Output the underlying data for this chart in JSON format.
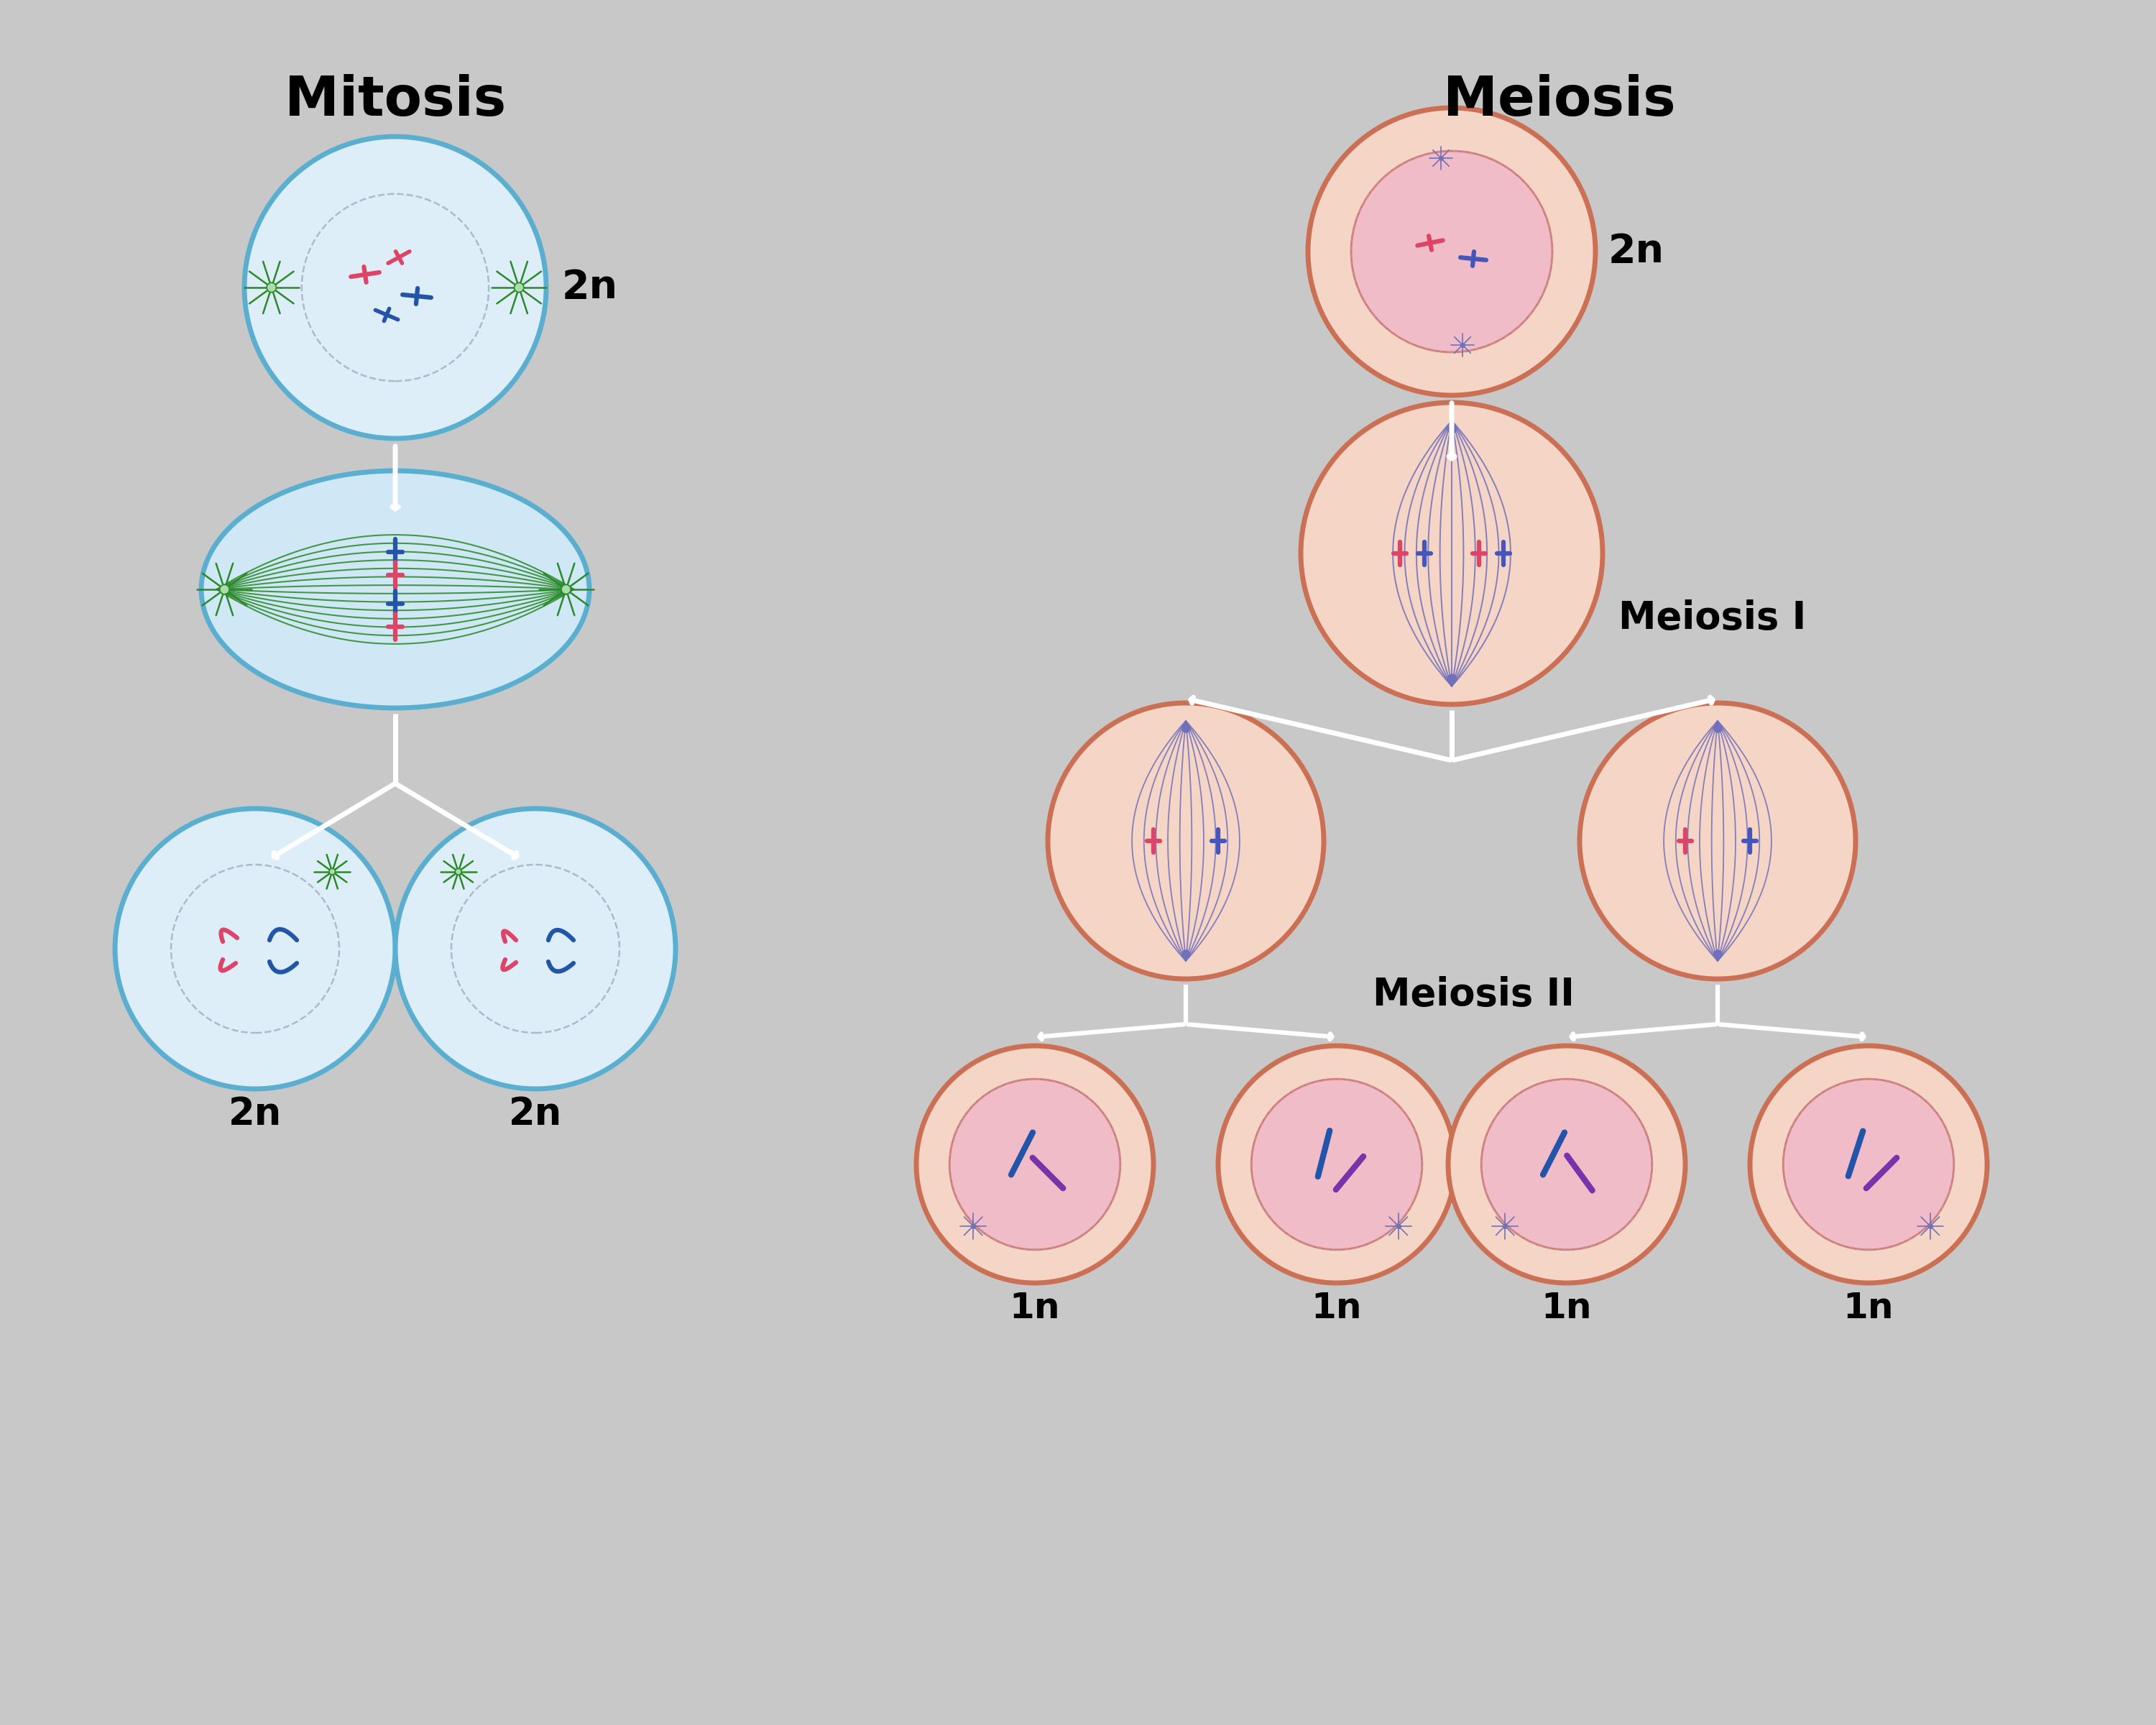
{
  "bg_color": "#c8c8c8",
  "title_mitosis": "Mitosis",
  "title_meiosis": "Meiosis",
  "label_meiosis1": "Meiosis I",
  "label_meiosis2": "Meiosis II",
  "label_2n": "2n",
  "label_1n": "1n",
  "mitosis_cell_color": "#ddeef8",
  "mitosis_cell_color2": "#d0e8f5",
  "mitosis_border_color": "#5aafd0",
  "meiosis_cell_color": "#f5d5c5",
  "meiosis_border_color": "#cc7055",
  "meiosis_nucleus_color": "#f0b8c8",
  "meiosis_spindle_color": "#7070bb",
  "mitosis_spindle_color": "#2a8a2a",
  "chromosome_pink": "#dd4466",
  "chromosome_blue": "#2255aa",
  "chromosome_purple": "#7733aa",
  "nucleus_dashed_color": "#aabbcc",
  "nucleus_dashed_color2": "#cc8899",
  "arrow_color": "#ffffff",
  "centriole_color": "#336633"
}
